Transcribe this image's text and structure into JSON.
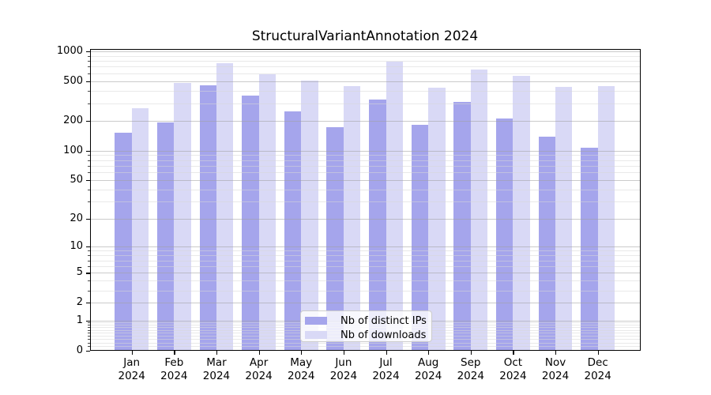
{
  "title": "StructuralVariantAnnotation 2024",
  "legend": {
    "items": [
      {
        "label": "Nb of distinct IPs",
        "color": "#a5a5ec"
      },
      {
        "label": "Nb of downloads",
        "color": "#d9d9f6"
      }
    ]
  },
  "chart_data": {
    "type": "bar",
    "title": "StructuralVariantAnnotation 2024",
    "categories": [
      "Jan",
      "Feb",
      "Mar",
      "Apr",
      "May",
      "Jun",
      "Jul",
      "Aug",
      "Sep",
      "Oct",
      "Nov",
      "Dec"
    ],
    "year": "2024",
    "series": [
      {
        "name": "Nb of distinct IPs",
        "color": "#a5a5ec",
        "values": [
          152,
          192,
          455,
          359,
          248,
          173,
          329,
          182,
          310,
          210,
          139,
          107
        ]
      },
      {
        "name": "Nb of downloads",
        "color": "#d9d9f6",
        "values": [
          267,
          480,
          760,
          585,
          510,
          447,
          784,
          430,
          653,
          567,
          436,
          445
        ]
      }
    ],
    "yscale": "log1p",
    "yticks": [
      0,
      1,
      2,
      5,
      10,
      20,
      50,
      100,
      200,
      500,
      1000
    ],
    "ylim": [
      0,
      1055
    ],
    "xlabel": "",
    "ylabel": "",
    "grid": true,
    "legend_position": "bottom-center",
    "colors": {
      "major_grid": "rgba(160,160,160,0.55)",
      "minor_grid": "rgba(215,215,215,0.55)",
      "axis": "#000000",
      "background": "#ffffff"
    }
  }
}
